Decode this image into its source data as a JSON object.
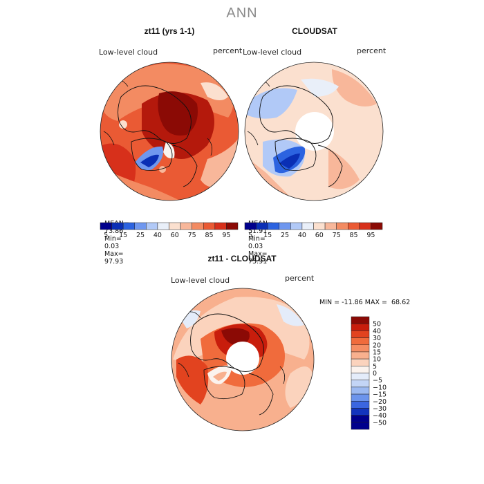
{
  "main_title": "ANN",
  "chart_data": [
    {
      "type": "heatmap",
      "title": "zt11 (yrs 1-1)",
      "variable_label": "Low-level cloud",
      "units": "percent",
      "stats": {
        "mean_label": "MEAN=",
        "mean": "73.86",
        "min_label": "Min=",
        "min": "0.03",
        "max_label": "Max=",
        "max": "97.93"
      },
      "colorbar_ticks": [
        "5",
        "15",
        "25",
        "40",
        "60",
        "75",
        "85",
        "95"
      ]
    },
    {
      "type": "heatmap",
      "title": "CLOUDSAT",
      "variable_label": "Low-level cloud",
      "units": "percent",
      "stats": {
        "mean_label": "MEAN=",
        "mean": "51.91",
        "min_label": "Min=",
        "min": "0.03",
        "max_label": "Max=",
        "max": "75.91"
      },
      "colorbar_ticks": [
        "5",
        "15",
        "25",
        "40",
        "60",
        "75",
        "85",
        "95"
      ]
    },
    {
      "type": "heatmap",
      "title": "zt11 - CLOUDSAT",
      "variable_label": "Low-level cloud",
      "units": "percent",
      "min_max_text": "MIN = -11.86 MAX =  68.62",
      "colorbar_ticks": [
        "50",
        "40",
        "30",
        "20",
        "15",
        "10",
        "5",
        "0",
        "−5",
        "−10",
        "−15",
        "−20",
        "−30",
        "−40",
        "−50"
      ]
    }
  ],
  "colors": {
    "seq": [
      "#00008c",
      "#0a2fb5",
      "#2c63e0",
      "#6f97ef",
      "#b1c9f7",
      "#e9eff9",
      "#fbe0cf",
      "#f8b79a",
      "#f38b62",
      "#ea5a34",
      "#d7301b",
      "#8b0a05"
    ],
    "div": [
      "#8b0a05",
      "#c81d0c",
      "#e2431f",
      "#f06b3c",
      "#f58d63",
      "#f8b08e",
      "#fbd3bd",
      "#fbf3ee",
      "#e4ecfa",
      "#c3d5f6",
      "#9cb9f1",
      "#6c94ec",
      "#3b66e0",
      "#1234bd",
      "#00008c"
    ]
  }
}
